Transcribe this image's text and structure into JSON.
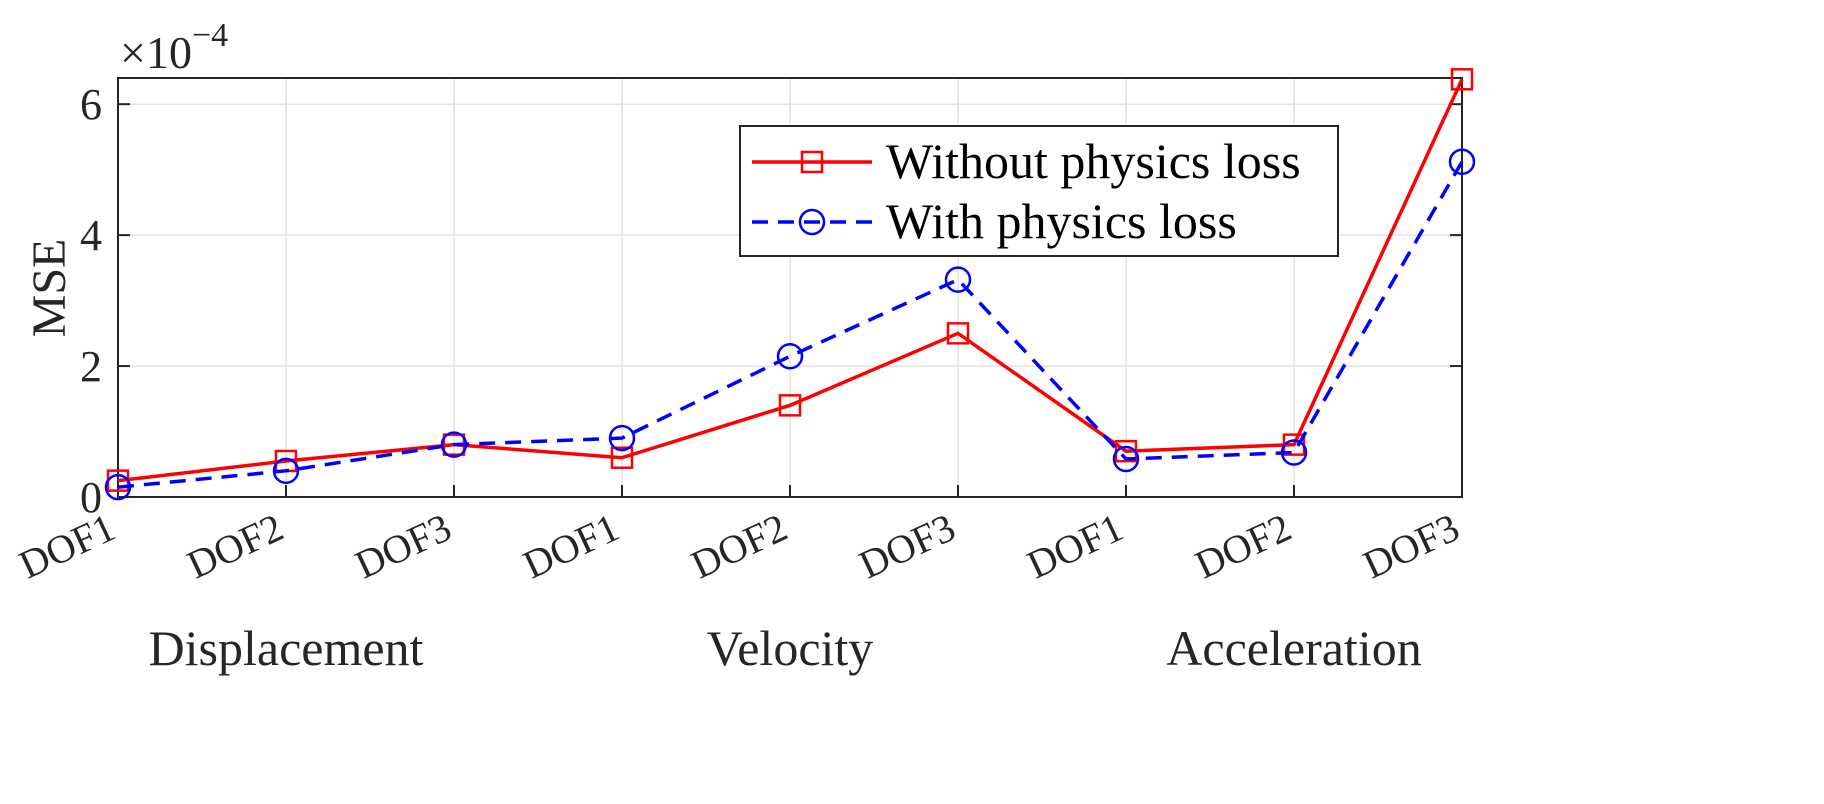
{
  "chart_data": {
    "type": "line",
    "categories": [
      "DOF1",
      "DOF2",
      "DOF3",
      "DOF1",
      "DOF2",
      "DOF3",
      "DOF1",
      "DOF2",
      "DOF3"
    ],
    "groups": [
      "Displacement",
      "Velocity",
      "Acceleration"
    ],
    "ylabel": "MSE",
    "y_exponent_label": "×10",
    "y_exponent": "−4",
    "y_ticks": [
      "0",
      "2",
      "4",
      "6"
    ],
    "ylim": [
      0,
      6.4
    ],
    "grid": true,
    "legend_position": "top-right",
    "series": [
      {
        "name": "Without physics loss",
        "color": "#ff0000",
        "marker": "square",
        "line_style": "solid",
        "values": [
          0.25,
          0.55,
          0.8,
          0.6,
          1.4,
          2.5,
          0.7,
          0.8,
          6.38
        ]
      },
      {
        "name": "With physics loss",
        "color": "#0000ff",
        "marker": "circle",
        "line_style": "dashed",
        "values": [
          0.15,
          0.4,
          0.8,
          0.9,
          2.15,
          3.32,
          0.58,
          0.68,
          5.12
        ]
      }
    ]
  }
}
